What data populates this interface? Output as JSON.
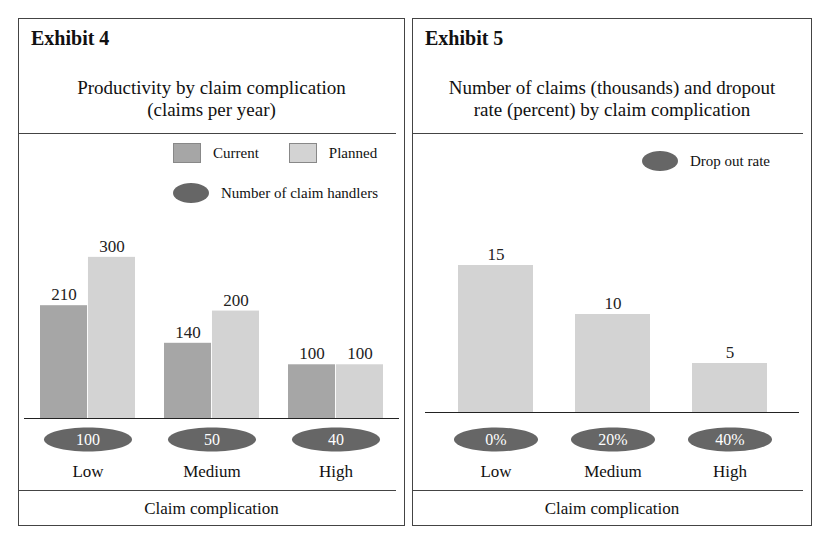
{
  "chart_data": [
    {
      "type": "bar",
      "exhibit": "Exhibit 4",
      "title": "Productivity by claim complication\n(claims per year)",
      "xlabel": "Claim complication",
      "categories": [
        "Low",
        "Medium",
        "High"
      ],
      "series": [
        {
          "name": "Current",
          "color": "#a6a6a6",
          "values": [
            210,
            140,
            100
          ]
        },
        {
          "name": "Planned",
          "color": "#d3d3d3",
          "values": [
            300,
            200,
            100
          ]
        }
      ],
      "ylim": [
        0,
        350
      ],
      "data_labels": true,
      "tick_labels": "x",
      "legend": "top-right",
      "badges": {
        "name": "Number of claim handlers",
        "color": "#666666",
        "values": [
          100,
          50,
          40
        ]
      }
    },
    {
      "type": "bar",
      "exhibit": "Exhibit 5",
      "title": "Number of claims (thousands) and dropout\nrate (percent) by claim complication",
      "xlabel": "Claim complication",
      "categories": [
        "Low",
        "Medium",
        "High"
      ],
      "values": [
        15,
        10,
        5
      ],
      "color": "#d3d3d3",
      "ylim": [
        0,
        20
      ],
      "data_labels": true,
      "tick_labels": "x",
      "legend": "top-right",
      "badges": {
        "name": "Drop out rate",
        "color": "#666666",
        "values": [
          0,
          20,
          40
        ],
        "value_labels": [
          "0%",
          "20%",
          "40%"
        ]
      }
    }
  ]
}
